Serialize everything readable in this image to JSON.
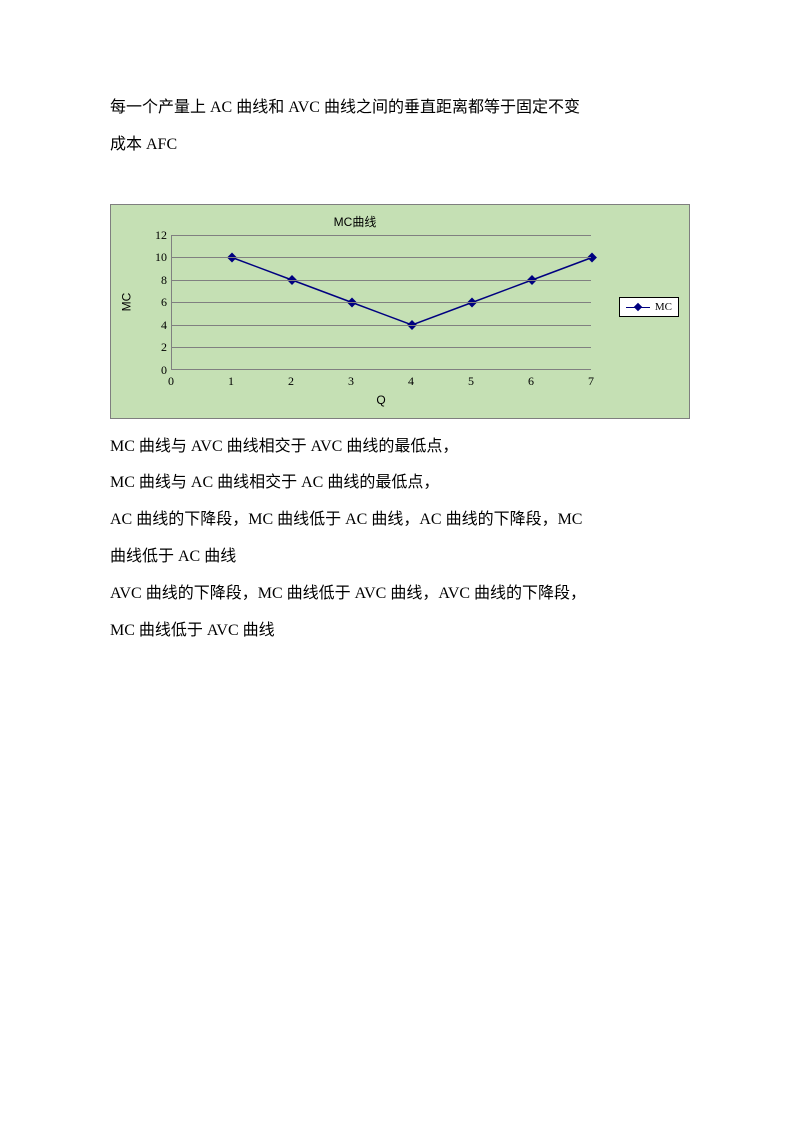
{
  "intro": {
    "line1": "每一个产量上 AC 曲线和 AVC 曲线之间的垂直距离都等于固定不变",
    "line2": "成本 AFC"
  },
  "chart": {
    "type": "line",
    "title": "MC曲线",
    "xlabel": "Q",
    "ylabel": "MC",
    "x_ticks": [
      0,
      1,
      2,
      3,
      4,
      5,
      6,
      7
    ],
    "y_ticks": [
      0,
      2,
      4,
      6,
      8,
      10,
      12
    ],
    "xlim": [
      0,
      7
    ],
    "ylim": [
      0,
      12
    ],
    "series": {
      "name": "MC",
      "x": [
        1,
        2,
        3,
        4,
        5,
        6,
        7
      ],
      "y": [
        10,
        8,
        6,
        4,
        6,
        8,
        10
      ],
      "color": "#000080",
      "marker": "diamond",
      "marker_size": 7,
      "line_width": 1.5
    },
    "background_color": "#c5e0b4",
    "plot_background_color": "#c5e0b4",
    "grid_color": "#808080",
    "axis_color": "#808080",
    "border_color": "#7f7f7f",
    "title_fontsize": 12,
    "label_fontsize": 12,
    "tick_fontsize": 12,
    "legend": {
      "label": "MC",
      "position": "right-middle",
      "background": "#ffffff",
      "border": "#000000"
    }
  },
  "notes": {
    "p1": "MC 曲线与 AVC 曲线相交于 AVC 曲线的最低点，",
    "p2": "MC 曲线与 AC 曲线相交于 AC 曲线的最低点，",
    "p3": "AC 曲线的下降段，MC 曲线低于 AC 曲线，AC 曲线的下降段，MC",
    "p4": "曲线低于 AC 曲线",
    "p5": "AVC 曲线的下降段，MC 曲线低于 AVC 曲线，AVC 曲线的下降段，",
    "p6": "MC 曲线低于 AVC 曲线"
  }
}
